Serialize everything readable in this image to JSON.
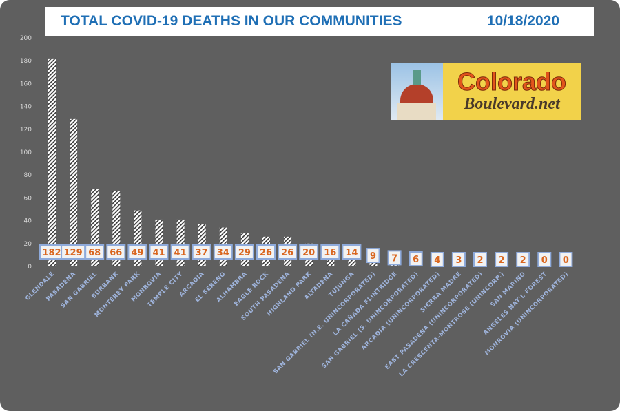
{
  "header": {
    "title": "TOTAL COVID-19 DEATHS IN OUR COMMUNITIES",
    "date": "10/18/2020"
  },
  "logo": {
    "line1": "Colorado",
    "line2": "Boulevard.net"
  },
  "colors": {
    "title": "#1f6fb5",
    "background": "#5f5f5f",
    "label_text": "#d9661f",
    "label_border": "#8eaadb",
    "category_text": "#9fb4dc"
  },
  "chart_data": {
    "type": "bar",
    "title": "TOTAL COVID-19 DEATHS IN OUR COMMUNITIES",
    "ylim": [
      0,
      200
    ],
    "yticks": [
      0,
      20,
      40,
      60,
      80,
      100,
      120,
      140,
      160,
      180,
      200
    ],
    "grid": false,
    "categories": [
      "GLENDALE",
      "PASADENA",
      "SAN GABRIEL",
      "BURBANK",
      "MONTEREY PARK",
      "MONROVIA",
      "TEMPLE CITY",
      "ARCADIA",
      "EL SERENO",
      "ALHAMBRA",
      "EAGLE ROCK",
      "SOUTH PASADENA",
      "HIGHLAND PARK",
      "ALTADENA",
      "TUJUNGA",
      "SAN GABRIEL (N.E. UNINCORPORATED)",
      "LA CAÑADA FLINTRIDGE",
      "SAN GABRIEL (S. UNINCORPORATED)",
      "ARCADIA (UNINCORPORATED)",
      "SIERRA MADRE",
      "EAST PASADENA (UNINCORPORATED)",
      "LA CRESCENTA-MONTROSE (UNINCORP.)",
      "SAN MARINO",
      "ANGELES NAT'L FOREST",
      "MONROVIA (UNINCORPORATED)"
    ],
    "values": [
      182,
      129,
      68,
      66,
      49,
      41,
      41,
      37,
      34,
      29,
      26,
      26,
      20,
      16,
      14,
      9,
      7,
      6,
      4,
      3,
      2,
      2,
      2,
      0,
      0
    ]
  }
}
